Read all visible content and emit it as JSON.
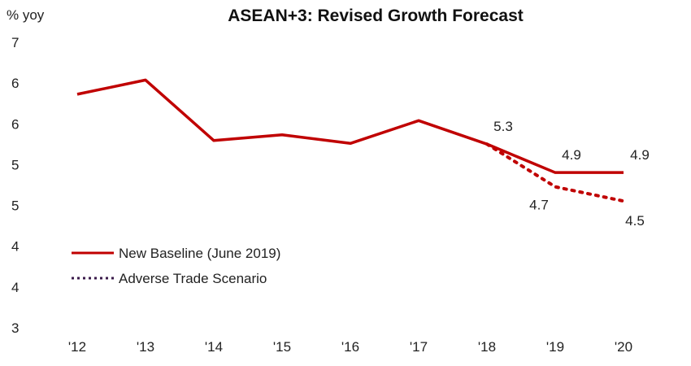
{
  "chart_data": {
    "type": "line",
    "title": "ASEAN+3:  Revised Growth Forecast",
    "ylabel": "% yoy",
    "xlabel": "",
    "categories": [
      "'12",
      "'13",
      "'14",
      "'15",
      "'16",
      "'17",
      "'18",
      "'19",
      "'20"
    ],
    "ytick_labels": [
      "7",
      "6",
      "6",
      "5",
      "5",
      "4",
      "4",
      "3"
    ],
    "ylim": [
      2.72,
      6.73
    ],
    "grid": false,
    "legend_position": "bottom-left",
    "series": [
      {
        "name": "New Baseline (June 2019)",
        "style": "solid",
        "color": "#c00000",
        "values": [
          6.0,
          6.2,
          5.35,
          5.43,
          5.31,
          5.63,
          5.3,
          4.9,
          4.9
        ]
      },
      {
        "name": "Adverse Trade Scenario",
        "style": "dotted",
        "color": "#c00000",
        "legend_color": "#3a1a4a",
        "values": [
          null,
          null,
          null,
          null,
          null,
          null,
          5.3,
          4.7,
          4.5
        ]
      }
    ],
    "annotations": [
      {
        "text": "5.3",
        "category": "'18",
        "value": 5.3,
        "pos": "above"
      },
      {
        "text": "4.9",
        "category": "'19",
        "value": 4.9,
        "pos": "above"
      },
      {
        "text": "4.9",
        "category": "'20",
        "value": 4.9,
        "pos": "above"
      },
      {
        "text": "4.7",
        "category": "'19",
        "value": 4.7,
        "pos": "below-left"
      },
      {
        "text": "4.5",
        "category": "'20",
        "value": 4.5,
        "pos": "below"
      }
    ]
  }
}
